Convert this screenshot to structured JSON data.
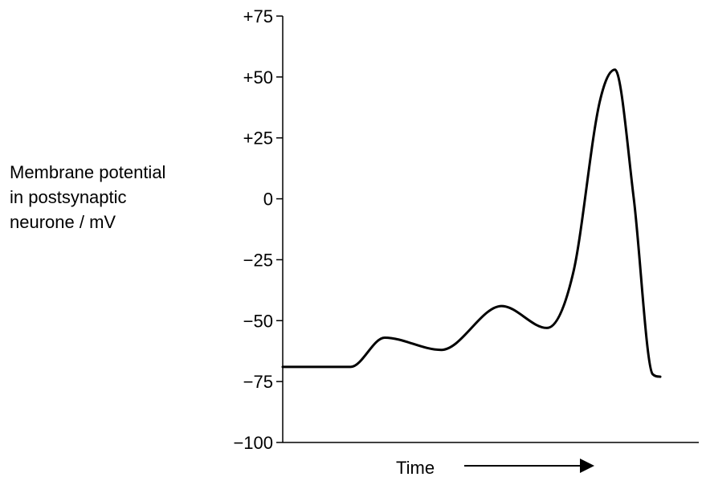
{
  "chart_data": {
    "type": "line",
    "ylabel_lines": [
      "Membrane potential",
      "in postsynaptic",
      "neurone / mV"
    ],
    "xlabel": "Time",
    "x_axis_arrow": true,
    "ylim": [
      -100,
      75
    ],
    "yticks": [
      75,
      50,
      25,
      0,
      -25,
      -50,
      -75,
      -100
    ],
    "ytick_labels": [
      "+75",
      "+50",
      "+25",
      "0",
      "−25",
      "−50",
      "−75",
      "−100"
    ],
    "x_ticks_shown": false,
    "grid": false,
    "legend": "none",
    "line_color": "#000000",
    "series": [
      {
        "x": [
          0,
          0.18,
          0.27,
          0.42,
          0.58,
          0.7,
          0.77,
          0.84,
          0.88,
          0.93,
          0.98,
          1.0
        ],
        "y": [
          -69,
          -69,
          -57,
          -62,
          -44,
          -53,
          -30,
          40,
          53,
          0,
          -72,
          -73
        ]
      }
    ]
  }
}
